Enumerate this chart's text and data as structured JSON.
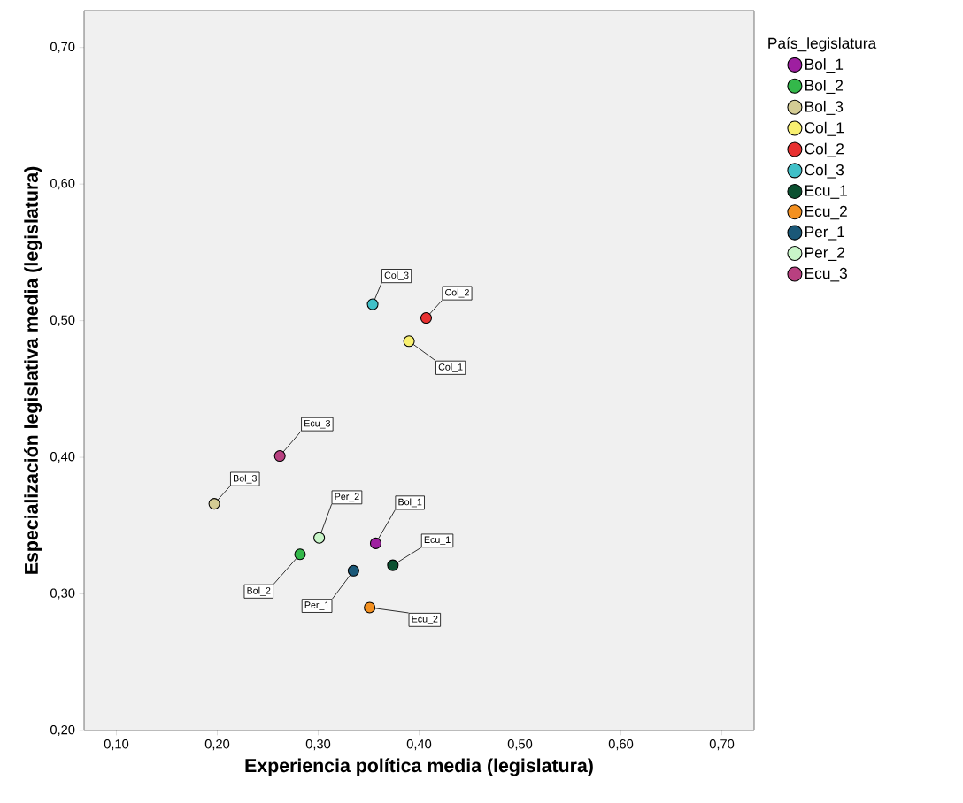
{
  "chart_data": {
    "type": "scatter",
    "xlabel": "Experiencia política media (legislatura)",
    "ylabel": "Especialización legislativa media (legislatura)",
    "legend_title": "País_legislatura",
    "legend": "right",
    "marker": "circle",
    "grid": false,
    "xlim": [
      0.068,
      0.732
    ],
    "ylim": [
      0.2,
      0.727
    ],
    "xticks": [
      {
        "value": 0.1,
        "label": "0,10"
      },
      {
        "value": 0.2,
        "label": "0,20"
      },
      {
        "value": 0.3,
        "label": "0,30"
      },
      {
        "value": 0.4,
        "label": "0,40"
      },
      {
        "value": 0.5,
        "label": "0,50"
      },
      {
        "value": 0.6,
        "label": "0,60"
      },
      {
        "value": 0.7,
        "label": "0,70"
      }
    ],
    "yticks": [
      {
        "value": 0.2,
        "label": "0,20"
      },
      {
        "value": 0.3,
        "label": "0,30"
      },
      {
        "value": 0.4,
        "label": "0,40"
      },
      {
        "value": 0.5,
        "label": "0,50"
      },
      {
        "value": 0.6,
        "label": "0,60"
      },
      {
        "value": 0.7,
        "label": "0,70"
      }
    ],
    "series": [
      {
        "name": "Bol_1",
        "color": "#9e1fa0",
        "x": [
          0.357
        ],
        "values": [
          0.337
        ]
      },
      {
        "name": "Bol_2",
        "color": "#33b84a",
        "x": [
          0.282
        ],
        "values": [
          0.329
        ]
      },
      {
        "name": "Bol_3",
        "color": "#d4cc94",
        "x": [
          0.197
        ],
        "values": [
          0.366
        ]
      },
      {
        "name": "Col_1",
        "color": "#f8f070",
        "x": [
          0.39
        ],
        "values": [
          0.485
        ]
      },
      {
        "name": "Col_2",
        "color": "#e83030",
        "x": [
          0.407
        ],
        "values": [
          0.502
        ]
      },
      {
        "name": "Col_3",
        "color": "#40c0c8",
        "x": [
          0.354
        ],
        "values": [
          0.512
        ]
      },
      {
        "name": "Ecu_1",
        "color": "#0b5030",
        "x": [
          0.374
        ],
        "values": [
          0.321
        ]
      },
      {
        "name": "Ecu_2",
        "color": "#f39020",
        "x": [
          0.351
        ],
        "values": [
          0.29
        ]
      },
      {
        "name": "Per_1",
        "color": "#1a5878",
        "x": [
          0.335
        ],
        "values": [
          0.317
        ]
      },
      {
        "name": "Per_2",
        "color": "#c8f5c8",
        "x": [
          0.301
        ],
        "values": [
          0.341
        ]
      },
      {
        "name": "Ecu_3",
        "color": "#b84080",
        "x": [
          0.262
        ],
        "values": [
          0.401
        ]
      }
    ]
  }
}
